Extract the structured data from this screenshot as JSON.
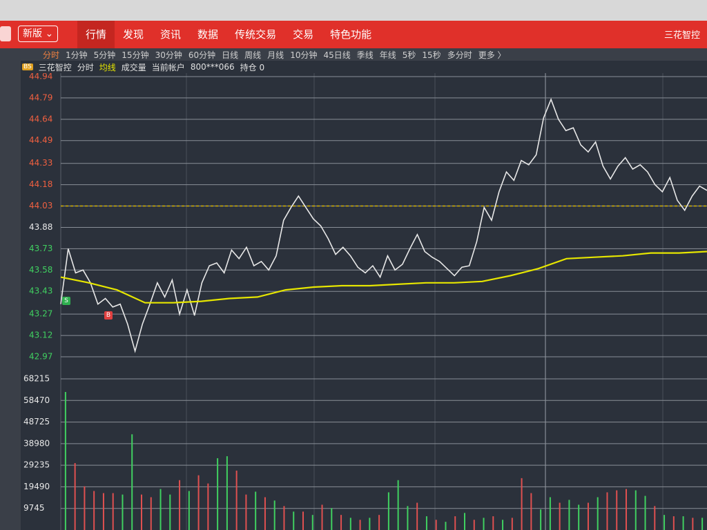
{
  "nav": {
    "version_button": "新版",
    "tabs": [
      "行情",
      "发现",
      "资讯",
      "数据",
      "传统交易",
      "交易",
      "特色功能"
    ],
    "stock_name": "三花智控"
  },
  "toolbar": {
    "periods": [
      "分时",
      "1分钟",
      "5分钟",
      "15分钟",
      "30分钟",
      "60分钟",
      "日线",
      "周线",
      "月线",
      "10分钟",
      "45日线",
      "季线",
      "年线",
      "5秒",
      "15秒",
      "多分时",
      "更多 〉"
    ]
  },
  "info_bar": {
    "badge": "BS",
    "stock": "三花智控",
    "account_label": "当前帐户",
    "account": "800***066",
    "position": "持仓 0"
  },
  "annotations": [
    "S",
    "B"
  ],
  "chart_data": [
    {
      "type": "line",
      "ylim": [
        42.97,
        44.94
      ],
      "yticks": [
        44.94,
        44.79,
        44.64,
        44.49,
        44.33,
        44.18,
        44.03,
        43.88,
        43.73,
        43.58,
        43.43,
        43.27,
        43.12,
        42.97
      ],
      "grid": true,
      "reference_line": 44.03,
      "reference_color": "#d8b400",
      "series": [
        {
          "name": "分时",
          "color": "#e8e8e8",
          "values": [
            43.34,
            43.73,
            43.56,
            43.58,
            43.49,
            43.34,
            43.38,
            43.32,
            43.34,
            43.2,
            43.01,
            43.2,
            43.34,
            43.49,
            43.39,
            43.51,
            43.27,
            43.44,
            43.26,
            43.49,
            43.61,
            43.63,
            43.56,
            43.72,
            43.66,
            43.74,
            43.61,
            43.64,
            43.58,
            43.68,
            43.93,
            44.02,
            44.1,
            44.02,
            43.94,
            43.89,
            43.8,
            43.69,
            43.74,
            43.68,
            43.6,
            43.56,
            43.61,
            43.53,
            43.68,
            43.58,
            43.62,
            43.73,
            43.83,
            43.71,
            43.67,
            43.64,
            43.59,
            43.54,
            43.6,
            43.61,
            43.78,
            44.02,
            43.93,
            44.13,
            44.27,
            44.21,
            44.35,
            44.32,
            44.39,
            44.65,
            44.78,
            44.64,
            44.56,
            44.58,
            44.46,
            44.41,
            44.48,
            44.31,
            44.22,
            44.31,
            44.37,
            44.29,
            44.32,
            44.27,
            44.18,
            44.13,
            44.23,
            44.07,
            44.0,
            44.1,
            44.17,
            44.14
          ]
        },
        {
          "name": "均线",
          "color": "#e6e600",
          "values": [
            43.53,
            43.49,
            43.44,
            43.35,
            43.35,
            43.36,
            43.38,
            43.39,
            43.44,
            43.46,
            43.47,
            43.47,
            43.48,
            43.49,
            43.49,
            43.5,
            43.54,
            43.59,
            43.66,
            43.67,
            43.68,
            43.7,
            43.7,
            43.71
          ]
        }
      ]
    },
    {
      "type": "bar",
      "ylim": [
        0,
        68215
      ],
      "yticks": [
        68215,
        58470,
        48725,
        38980,
        29235,
        19490,
        9745
      ],
      "grid": true,
      "series": [
        {
          "name": "成交量",
          "values": [
            62300,
            30200,
            19700,
            17600,
            16650,
            16650,
            16000,
            43200,
            16000,
            14800,
            18500,
            16000,
            22500,
            17600,
            24700,
            21000,
            32400,
            33300,
            26800,
            16000,
            17300,
            14800,
            13300,
            10800,
            8300,
            8300,
            6800,
            11400,
            9900,
            6800,
            5500,
            4600,
            5500,
            6800,
            17000,
            22500,
            10800,
            12300,
            6200,
            4600,
            3700,
            6200,
            7700,
            4600,
            5500,
            6200,
            4600,
            5500,
            23400,
            16650,
            9300,
            14800,
            12300,
            13600,
            11400,
            12300,
            14800,
            17000,
            17900,
            18500,
            17900,
            15400,
            10800,
            6800,
            6200,
            6200,
            5500,
            5500
          ],
          "colors": [
            "#40d060",
            "#e05050",
            "#e05050",
            "#e05050",
            "#e05050",
            "#e05050",
            "#40d060",
            "#40d060",
            "#e05050",
            "#e05050",
            "#40d060",
            "#40d060",
            "#e05050",
            "#40d060",
            "#e05050",
            "#e05050",
            "#40d060",
            "#40d060",
            "#e05050",
            "#e05050",
            "#40d060",
            "#e05050",
            "#40d060",
            "#e05050",
            "#40d060",
            "#e05050",
            "#40d060",
            "#e05050",
            "#40d060",
            "#e05050",
            "#40d060",
            "#e05050",
            "#40d060",
            "#e05050",
            "#40d060",
            "#40d060",
            "#40d060",
            "#e05050",
            "#40d060",
            "#e05050",
            "#40d060",
            "#e05050",
            "#40d060",
            "#e05050",
            "#40d060",
            "#e05050",
            "#40d060",
            "#e05050",
            "#e05050",
            "#e05050",
            "#40d060",
            "#40d060",
            "#e05050",
            "#40d060",
            "#40d060",
            "#e05050",
            "#40d060",
            "#e05050",
            "#e05050",
            "#e05050",
            "#40d060",
            "#40d060",
            "#e05050",
            "#40d060",
            "#e05050",
            "#40d060",
            "#e05050",
            "#40d060"
          ]
        }
      ]
    }
  ]
}
